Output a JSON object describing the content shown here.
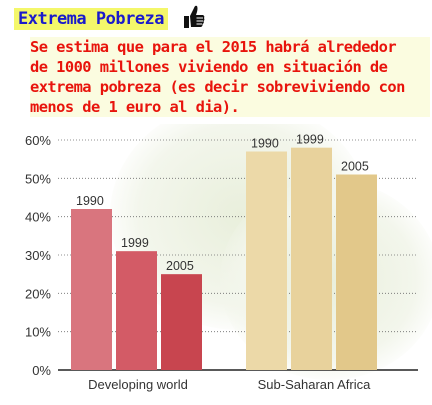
{
  "header": {
    "title": "Extrema Pobreza",
    "description": "Se estima que para el 2015 habrá alrededor\nde 1000 millones viviendo en situación de\nextrema pobreza (es decir sobreviviendo con\nmenos de 1 euro al dia).",
    "icon": "thumbs-up-icon"
  },
  "chart_data": {
    "type": "bar",
    "categories": [
      "Developing world",
      "Sub-Saharan Africa"
    ],
    "series": [
      {
        "values": [
          42,
          57
        ],
        "label": "1990"
      },
      {
        "values": [
          31,
          58
        ],
        "label": "1999"
      },
      {
        "values": [
          25,
          51
        ],
        "label": "2005"
      }
    ],
    "yticks": [
      "0%",
      "10%",
      "20%",
      "30%",
      "40%",
      "50%",
      "60%"
    ],
    "ylim": [
      0,
      60
    ],
    "grid": true,
    "colors": {
      "developing": [
        "#d9757e",
        "#d35b66",
        "#c8454f"
      ],
      "subsaharan": [
        "#ecd9a8",
        "#e8d29c",
        "#e2c88a"
      ]
    }
  }
}
